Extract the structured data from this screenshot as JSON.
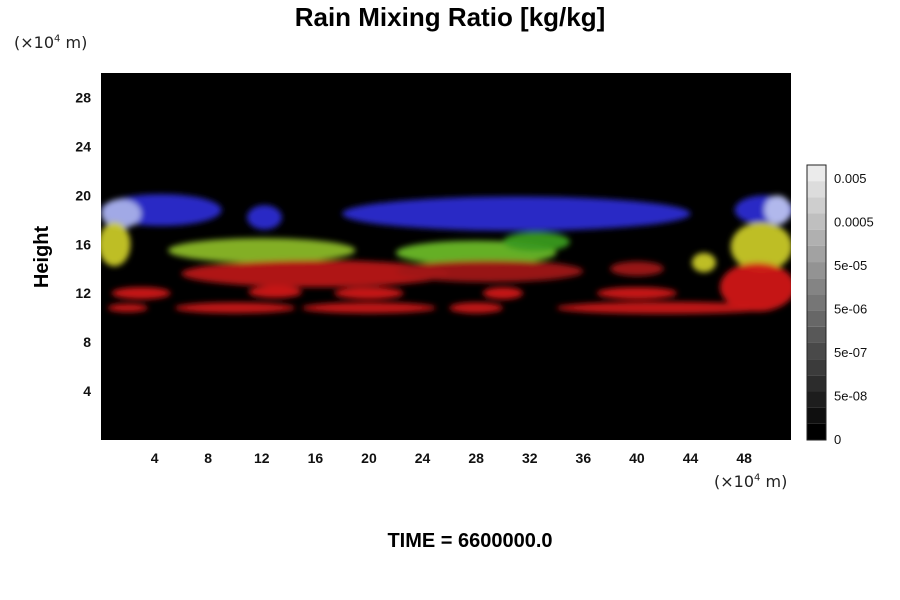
{
  "title": "Rain Mixing Ratio [kg/kg]",
  "time_label": "TIME = 6600000.0",
  "y_unit": {
    "prefix": "(×10",
    "exp": "4",
    "suffix": " m)"
  },
  "x_unit": {
    "prefix": "(×10",
    "exp": "4",
    "suffix": " m)"
  },
  "chart_data": {
    "type": "heatmap",
    "title": "Rain Mixing Ratio [kg/kg]",
    "ylabel": "Height",
    "xlabel": "",
    "x_ticks": [
      4,
      8,
      12,
      16,
      20,
      24,
      28,
      32,
      36,
      40,
      44,
      48
    ],
    "y_ticks": [
      4,
      8,
      12,
      16,
      20,
      24,
      28
    ],
    "xlim": [
      0,
      51.5
    ],
    "ylim": [
      0,
      30
    ],
    "x_unit": "×10^4 m",
    "y_unit": "×10^4 m",
    "background": "#000000",
    "colorbar": {
      "labels": [
        "0.005",
        "0.0005",
        "5e-05",
        "5e-06",
        "5e-07",
        "5e-08",
        "0"
      ],
      "levels": 17
    },
    "regions": [
      {
        "color": "#2b2bd0",
        "cx": 4.5,
        "cy": 18.8,
        "rx": 4.5,
        "ry": 1.3
      },
      {
        "color": "#a8b0e8",
        "cx": 1.5,
        "cy": 18.5,
        "rx": 1.5,
        "ry": 1.2
      },
      {
        "color": "#2b2bd0",
        "cx": 12.2,
        "cy": 18.2,
        "rx": 1.3,
        "ry": 1.0
      },
      {
        "color": "#2b2bd0",
        "cx": 31.0,
        "cy": 18.5,
        "rx": 13.0,
        "ry": 1.4
      },
      {
        "color": "#2b2bd0",
        "cx": 49.5,
        "cy": 18.8,
        "rx": 2.2,
        "ry": 1.2
      },
      {
        "color": "#b8c0ee",
        "cx": 50.5,
        "cy": 18.8,
        "rx": 1.0,
        "ry": 1.2
      },
      {
        "color": "#c8c828",
        "cx": 1.0,
        "cy": 16.0,
        "rx": 1.2,
        "ry": 1.8
      },
      {
        "color": "#8ab828",
        "cx": 12.0,
        "cy": 15.5,
        "rx": 7.0,
        "ry": 1.0
      },
      {
        "color": "#6ab828",
        "cx": 28.0,
        "cy": 15.3,
        "rx": 6.0,
        "ry": 1.0
      },
      {
        "color": "#3a9a20",
        "cx": 32.5,
        "cy": 16.2,
        "rx": 2.5,
        "ry": 0.8
      },
      {
        "color": "#c8c828",
        "cx": 49.3,
        "cy": 15.8,
        "rx": 2.3,
        "ry": 2.0
      },
      {
        "color": "#c8c828",
        "cx": 45.0,
        "cy": 14.5,
        "rx": 0.9,
        "ry": 0.8
      },
      {
        "color": "#b81818",
        "cx": 16.0,
        "cy": 13.6,
        "rx": 10.0,
        "ry": 1.1
      },
      {
        "color": "#a01818",
        "cx": 29.0,
        "cy": 13.8,
        "rx": 7.0,
        "ry": 0.9
      },
      {
        "color": "#a01818",
        "cx": 40.0,
        "cy": 14.0,
        "rx": 2.0,
        "ry": 0.6
      },
      {
        "color": "#d01818",
        "cx": 49.0,
        "cy": 12.5,
        "rx": 2.8,
        "ry": 2.0
      },
      {
        "color": "#d01818",
        "cx": 3.0,
        "cy": 12.0,
        "rx": 2.2,
        "ry": 0.5
      },
      {
        "color": "#d01818",
        "cx": 13.0,
        "cy": 12.1,
        "rx": 2.0,
        "ry": 0.5
      },
      {
        "color": "#d01818",
        "cx": 20.0,
        "cy": 12.0,
        "rx": 2.6,
        "ry": 0.5
      },
      {
        "color": "#d01818",
        "cx": 30.0,
        "cy": 12.0,
        "rx": 1.5,
        "ry": 0.5
      },
      {
        "color": "#d01818",
        "cx": 40.0,
        "cy": 12.0,
        "rx": 3.0,
        "ry": 0.5
      },
      {
        "color": "#c81818",
        "cx": 10.0,
        "cy": 10.8,
        "rx": 4.5,
        "ry": 0.45
      },
      {
        "color": "#c81818",
        "cx": 20.0,
        "cy": 10.8,
        "rx": 5.0,
        "ry": 0.45
      },
      {
        "color": "#c81818",
        "cx": 28.0,
        "cy": 10.8,
        "rx": 2.0,
        "ry": 0.45
      },
      {
        "color": "#c81818",
        "cx": 42.0,
        "cy": 10.8,
        "rx": 8.0,
        "ry": 0.5
      },
      {
        "color": "#c81818",
        "cx": 2.0,
        "cy": 10.8,
        "rx": 1.5,
        "ry": 0.35
      }
    ]
  }
}
